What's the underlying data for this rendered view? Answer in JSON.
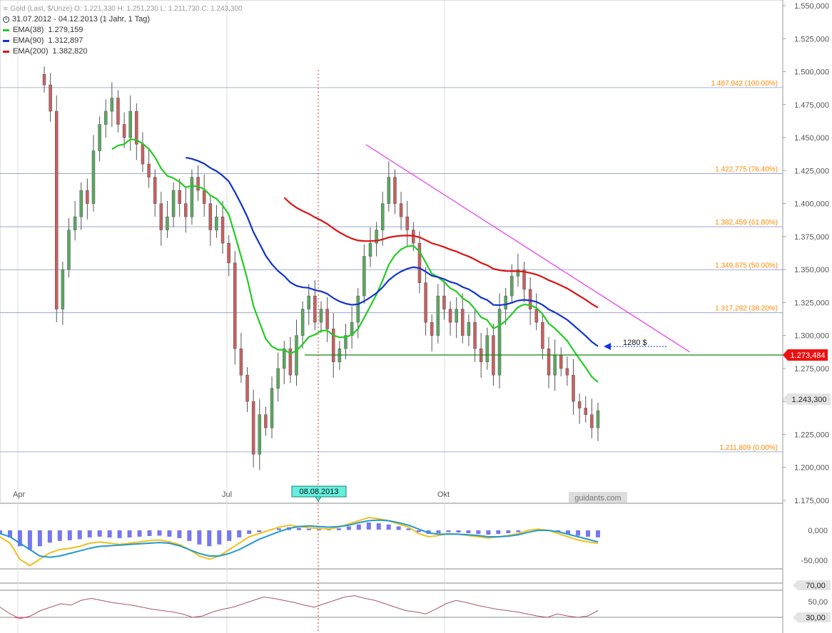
{
  "legend": {
    "title": "Gold (Last, $/Unze)  O: 1.221,330  H: 1.251,230  L: 1.211,730  C: 1.243,300",
    "period": "31.07.2012 - 04.12.2013 (1 Jahr, 1 Tag)",
    "ema38_label": "EMA(38)",
    "ema38_value": "1.279,159",
    "ema90_label": "EMA(90)",
    "ema90_value": "1.312,897",
    "ema200_label": "EMA(200)",
    "ema200_value": "1.382,820"
  },
  "colors": {
    "ema38": "#22cc22",
    "ema90": "#1133cc",
    "ema200": "#dd1111",
    "fib": "#ff8800",
    "trend": "#ee33ee",
    "support": "#118811",
    "bull": "#5aa860",
    "bear": "#c86060",
    "macd_hist": "#7777ee",
    "macd_line": "#f0c020",
    "macd_signal": "#2299cc",
    "rsi": "#aa5566",
    "rsi_fill": "#ee5577"
  },
  "axis_labels": {
    "price": [
      "1.550,000",
      "1.525,000",
      "1.500,000",
      "1.475,000",
      "1.450,000",
      "1.425,000",
      "1.400,000",
      "1.375,000",
      "1.350,000",
      "1.325,000",
      "1.300,000",
      "1.275,000",
      "1.250,000",
      "1.225,000",
      "1.200,000",
      "1.175,000"
    ],
    "months": [
      "Apr",
      "Jul",
      "Okt"
    ],
    "macd": [
      "0,000",
      "-50,000"
    ],
    "rsi": [
      "70,00",
      "50,00",
      "30,00"
    ]
  },
  "fib_labels": [
    "1.487,942 (100.00%)",
    "1.422,775 (76.40%)",
    "1.382,459 (61.80%)",
    "1.349,875 (50.00%)",
    "1.317,292 (38.20%)",
    "1.211,809 (0.00%)"
  ],
  "marker_date": "08.08.2013",
  "target_label": "1280 $",
  "support_label": "1.273,484",
  "last_price_label": "1.243,300",
  "watermark": "guidants.com",
  "chart_data": {
    "type": "candlestick",
    "title": "Gold (Last, $/Unze)",
    "ylim": [
      1175,
      1550
    ],
    "last": {
      "open": 1221.33,
      "high": 1251.23,
      "low": 1211.73,
      "close": 1243.3
    },
    "ema": [
      {
        "name": "EMA(38)",
        "value": 1279.159
      },
      {
        "name": "EMA(90)",
        "value": 1312.897
      },
      {
        "name": "EMA(200)",
        "value": 1382.82
      }
    ],
    "fibonacci": [
      {
        "level": "100.00%",
        "price": 1487.942
      },
      {
        "level": "76.40%",
        "price": 1422.775
      },
      {
        "level": "61.80%",
        "price": 1382.459
      },
      {
        "level": "50.00%",
        "price": 1349.875
      },
      {
        "level": "38.20%",
        "price": 1317.292
      },
      {
        "level": "0.00%",
        "price": 1211.809
      }
    ],
    "support": 1273.484,
    "target": 1280,
    "closes": [
      1490,
      1470,
      1320,
      1350,
      1380,
      1390,
      1410,
      1400,
      1440,
      1460,
      1470,
      1480,
      1460,
      1450,
      1470,
      1445,
      1430,
      1420,
      1400,
      1380,
      1390,
      1410,
      1400,
      1390,
      1420,
      1410,
      1400,
      1380,
      1390,
      1370,
      1355,
      1290,
      1270,
      1250,
      1210,
      1240,
      1230,
      1260,
      1275,
      1290,
      1270,
      1300,
      1320,
      1330,
      1310,
      1320,
      1305,
      1280,
      1290,
      1300,
      1310,
      1330,
      1360,
      1370,
      1380,
      1400,
      1420,
      1400,
      1390,
      1380,
      1370,
      1340,
      1310,
      1300,
      1330,
      1320,
      1310,
      1320,
      1300,
      1310,
      1290,
      1280,
      1300,
      1270,
      1320,
      1330,
      1345,
      1350,
      1335,
      1320,
      1310,
      1290,
      1270,
      1285,
      1275,
      1270,
      1250,
      1245,
      1240,
      1230,
      1243
    ],
    "macd": [
      -10,
      -20,
      -45,
      -55,
      -45,
      -35,
      -30,
      -28,
      -25,
      -20,
      -18,
      -20,
      -22,
      -20,
      -18,
      -16,
      -15,
      -18,
      -22,
      -30,
      -40,
      -45,
      -40,
      -30,
      -20,
      -10,
      -5,
      0,
      5,
      8,
      6,
      4,
      3,
      2,
      5,
      10,
      15,
      20,
      18,
      15,
      10,
      5,
      -5,
      -10,
      -8,
      -5,
      -6,
      -8,
      -10,
      -12,
      -10,
      -8,
      -5,
      0,
      2,
      0,
      -5,
      -10,
      -15,
      -18,
      -20
    ],
    "macd_signal": [
      -5,
      -10,
      -20,
      -30,
      -40,
      -42,
      -40,
      -36,
      -32,
      -28,
      -25,
      -24,
      -23,
      -22,
      -21,
      -20,
      -19,
      -20,
      -24,
      -30,
      -36,
      -40,
      -40,
      -36,
      -30,
      -22,
      -14,
      -8,
      -2,
      3,
      6,
      7,
      6,
      5,
      6,
      8,
      12,
      15,
      16,
      15,
      12,
      8,
      2,
      -4,
      -6,
      -6,
      -6,
      -7,
      -8,
      -10,
      -10,
      -9,
      -7,
      -3,
      0,
      0,
      -2,
      -6,
      -10,
      -14,
      -18
    ],
    "rsi": [
      45,
      35,
      28,
      32,
      40,
      45,
      50,
      48,
      55,
      58,
      55,
      52,
      50,
      48,
      45,
      42,
      40,
      38,
      35,
      30,
      32,
      38,
      42,
      45,
      50,
      55,
      60,
      58,
      55,
      52,
      48,
      45,
      50,
      55,
      60,
      62,
      58,
      55,
      50,
      45,
      40,
      38,
      35,
      42,
      50,
      55,
      52,
      48,
      45,
      42,
      40,
      38,
      35,
      32,
      30,
      35,
      32,
      30,
      32,
      40
    ]
  }
}
